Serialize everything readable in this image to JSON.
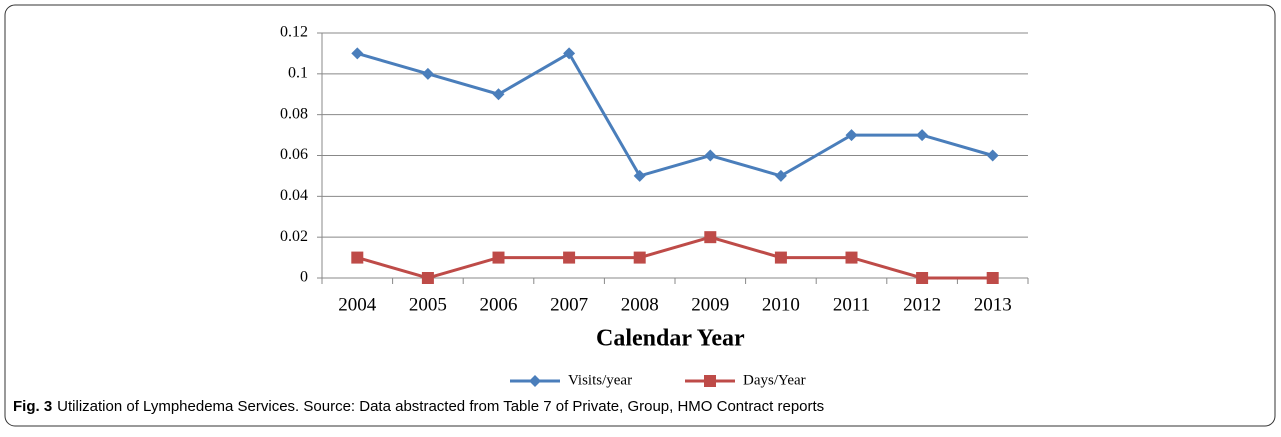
{
  "chart_data": {
    "type": "line",
    "xlabel": "Calendar Year",
    "categories": [
      "2004",
      "2005",
      "2006",
      "2007",
      "2008",
      "2009",
      "2010",
      "2011",
      "2012",
      "2013"
    ],
    "series": [
      {
        "name": "Visits/year",
        "color": "#4a7ebb",
        "marker": "diamond",
        "values": [
          0.11,
          0.1,
          0.09,
          0.11,
          0.05,
          0.06,
          0.05,
          0.07,
          0.07,
          0.06
        ]
      },
      {
        "name": "Days/Year",
        "color": "#be4b48",
        "marker": "square",
        "values": [
          0.01,
          0,
          0.01,
          0.01,
          0.01,
          0.02,
          0.01,
          0.01,
          0,
          0
        ]
      }
    ],
    "ylim": [
      0,
      0.12
    ],
    "yticks": [
      0,
      0.02,
      0.04,
      0.06,
      0.08,
      0.1,
      0.12
    ],
    "grid": true,
    "legend": "bottom"
  },
  "caption": {
    "label": "Fig. 3",
    "text": "Utilization of Lymphedema Services. Source: Data abstracted from Table 7 of Private, Group, HMO Contract reports"
  }
}
